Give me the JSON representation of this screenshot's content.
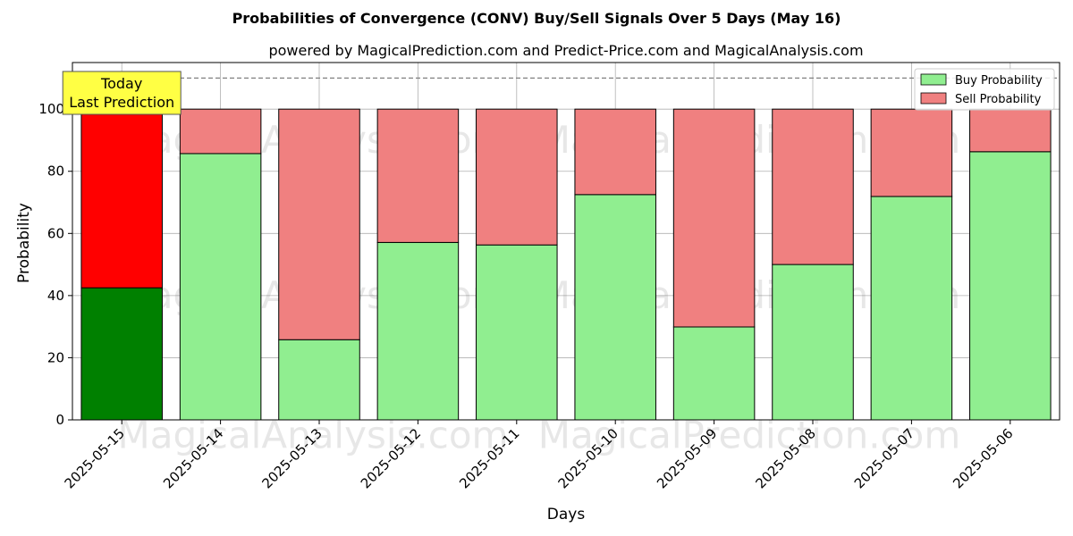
{
  "chart_data": {
    "type": "bar",
    "stacked": true,
    "title": "Probabilities of Convergence (CONV) Buy/Sell Signals Over 5 Days (May 16)",
    "subtitle": "powered by MagicalPrediction.com and Predict-Price.com and MagicalAnalysis.com",
    "xlabel": "Days",
    "ylabel": "Probability",
    "ylim": [
      0,
      115
    ],
    "yticks": [
      0,
      20,
      40,
      60,
      80,
      100
    ],
    "reference_line": 110,
    "grid": true,
    "legend_position": "top-right",
    "categories": [
      "2025-05-15",
      "2025-05-14",
      "2025-05-13",
      "2025-05-12",
      "2025-05-11",
      "2025-05-10",
      "2025-05-09",
      "2025-05-08",
      "2025-05-07",
      "2025-05-06"
    ],
    "series": [
      {
        "name": "Buy Probability",
        "values": [
          42.5,
          85.7,
          25.8,
          57.1,
          56.3,
          72.5,
          29.9,
          50.0,
          71.9,
          86.3
        ],
        "color": "#90ee90",
        "highlight_color": "#008000"
      },
      {
        "name": "Sell Probability",
        "values": [
          57.5,
          14.3,
          74.2,
          42.9,
          43.7,
          27.5,
          70.1,
          50.0,
          28.1,
          13.7
        ],
        "color": "#f08080",
        "highlight_color": "#ff0000"
      }
    ],
    "annotation": {
      "lines": [
        "Today",
        "Last Prediction"
      ],
      "bg_color": "#ffff44"
    },
    "watermarks": [
      "MagicalAnalysis.com",
      "MagicalPrediction.com"
    ]
  }
}
